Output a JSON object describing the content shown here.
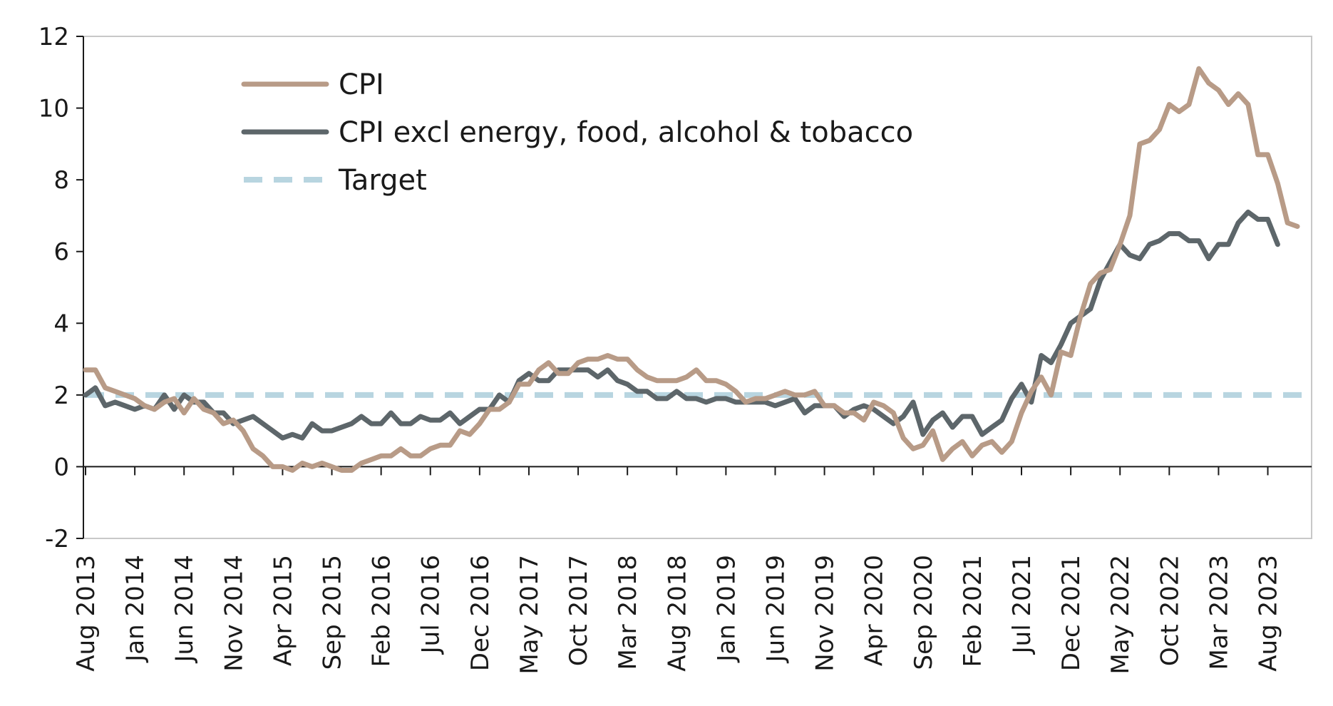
{
  "chart_data": {
    "type": "line",
    "title": "",
    "xlabel": "",
    "ylabel": "",
    "ylim": [
      -2,
      12
    ],
    "y_ticks": [
      -2,
      0,
      2,
      4,
      6,
      8,
      10,
      12
    ],
    "x_start": "Aug 2013",
    "x_tick_labels": [
      "Aug 2013",
      "Jan 2014",
      "Jun 2014",
      "Nov 2014",
      "Apr 2015",
      "Sep 2015",
      "Feb 2016",
      "Jul 2016",
      "Dec 2016",
      "May 2017",
      "Oct 2017",
      "Mar 2018",
      "Aug 2018",
      "Jan 2019",
      "Jun 2019",
      "Nov 2019",
      "Apr 2020",
      "Sep 2020",
      "Feb 2021",
      "Jul 2021",
      "Dec 2021",
      "May 2022",
      "Oct 2022",
      "Mar 2023",
      "Aug 2023"
    ],
    "legend_position": "top-left",
    "grid": false,
    "series": [
      {
        "name": "CPI",
        "color": "#b89b87",
        "dash": "solid",
        "values": [
          2.7,
          2.7,
          2.2,
          2.1,
          2.0,
          1.9,
          1.7,
          1.6,
          1.8,
          1.9,
          1.5,
          1.9,
          1.6,
          1.5,
          1.2,
          1.3,
          1.0,
          0.5,
          0.3,
          0.0,
          0.0,
          -0.1,
          0.1,
          0.0,
          0.1,
          0.0,
          -0.1,
          -0.1,
          0.1,
          0.2,
          0.3,
          0.3,
          0.5,
          0.3,
          0.3,
          0.5,
          0.6,
          0.6,
          1.0,
          0.9,
          1.2,
          1.6,
          1.6,
          1.8,
          2.3,
          2.3,
          2.7,
          2.9,
          2.6,
          2.6,
          2.9,
          3.0,
          3.0,
          3.1,
          3.0,
          3.0,
          2.7,
          2.5,
          2.4,
          2.4,
          2.4,
          2.5,
          2.7,
          2.4,
          2.4,
          2.3,
          2.1,
          1.8,
          1.9,
          1.9,
          2.0,
          2.1,
          2.0,
          2.0,
          2.1,
          1.7,
          1.7,
          1.5,
          1.5,
          1.3,
          1.8,
          1.7,
          1.5,
          0.8,
          0.5,
          0.6,
          1.0,
          0.2,
          0.5,
          0.7,
          0.3,
          0.6,
          0.7,
          0.4,
          0.7,
          1.5,
          2.1,
          2.5,
          2.0,
          3.2,
          3.1,
          4.2,
          5.1,
          5.4,
          5.5,
          6.2,
          7.0,
          9.0,
          9.1,
          9.4,
          10.1,
          9.9,
          10.1,
          11.1,
          10.7,
          10.5,
          10.1,
          10.4,
          10.1,
          8.7,
          8.7,
          7.9,
          6.8,
          6.7
        ]
      },
      {
        "name": "CPI excl energy, food, alcohol & tobacco",
        "color": "#5d666a",
        "dash": "solid",
        "values": [
          2.0,
          2.2,
          1.7,
          1.8,
          1.7,
          1.6,
          1.7,
          1.6,
          2.0,
          1.6,
          2.0,
          1.8,
          1.8,
          1.5,
          1.5,
          1.2,
          1.3,
          1.4,
          1.2,
          1.0,
          0.8,
          0.9,
          0.8,
          1.2,
          1.0,
          1.0,
          1.1,
          1.2,
          1.4,
          1.2,
          1.2,
          1.5,
          1.2,
          1.2,
          1.4,
          1.3,
          1.3,
          1.5,
          1.2,
          1.4,
          1.6,
          1.6,
          2.0,
          1.8,
          2.4,
          2.6,
          2.4,
          2.4,
          2.7,
          2.7,
          2.7,
          2.7,
          2.5,
          2.7,
          2.4,
          2.3,
          2.1,
          2.1,
          1.9,
          1.9,
          2.1,
          1.9,
          1.9,
          1.8,
          1.9,
          1.9,
          1.8,
          1.8,
          1.8,
          1.8,
          1.7,
          1.8,
          1.9,
          1.5,
          1.7,
          1.7,
          1.7,
          1.4,
          1.6,
          1.7,
          1.6,
          1.4,
          1.2,
          1.4,
          1.8,
          0.9,
          1.3,
          1.5,
          1.1,
          1.4,
          1.4,
          0.9,
          1.1,
          1.3,
          1.9,
          2.3,
          1.8,
          3.1,
          2.9,
          3.4,
          4.0,
          4.2,
          4.4,
          5.2,
          5.7,
          6.2,
          5.9,
          5.8,
          6.2,
          6.3,
          6.5,
          6.5,
          6.3,
          6.3,
          5.8,
          6.2,
          6.2,
          6.8,
          7.1,
          6.9,
          6.9,
          6.2
        ]
      },
      {
        "name": "Target",
        "color": "#b8d5e0",
        "dash": "dashed",
        "values": [
          2,
          2
        ]
      }
    ]
  }
}
